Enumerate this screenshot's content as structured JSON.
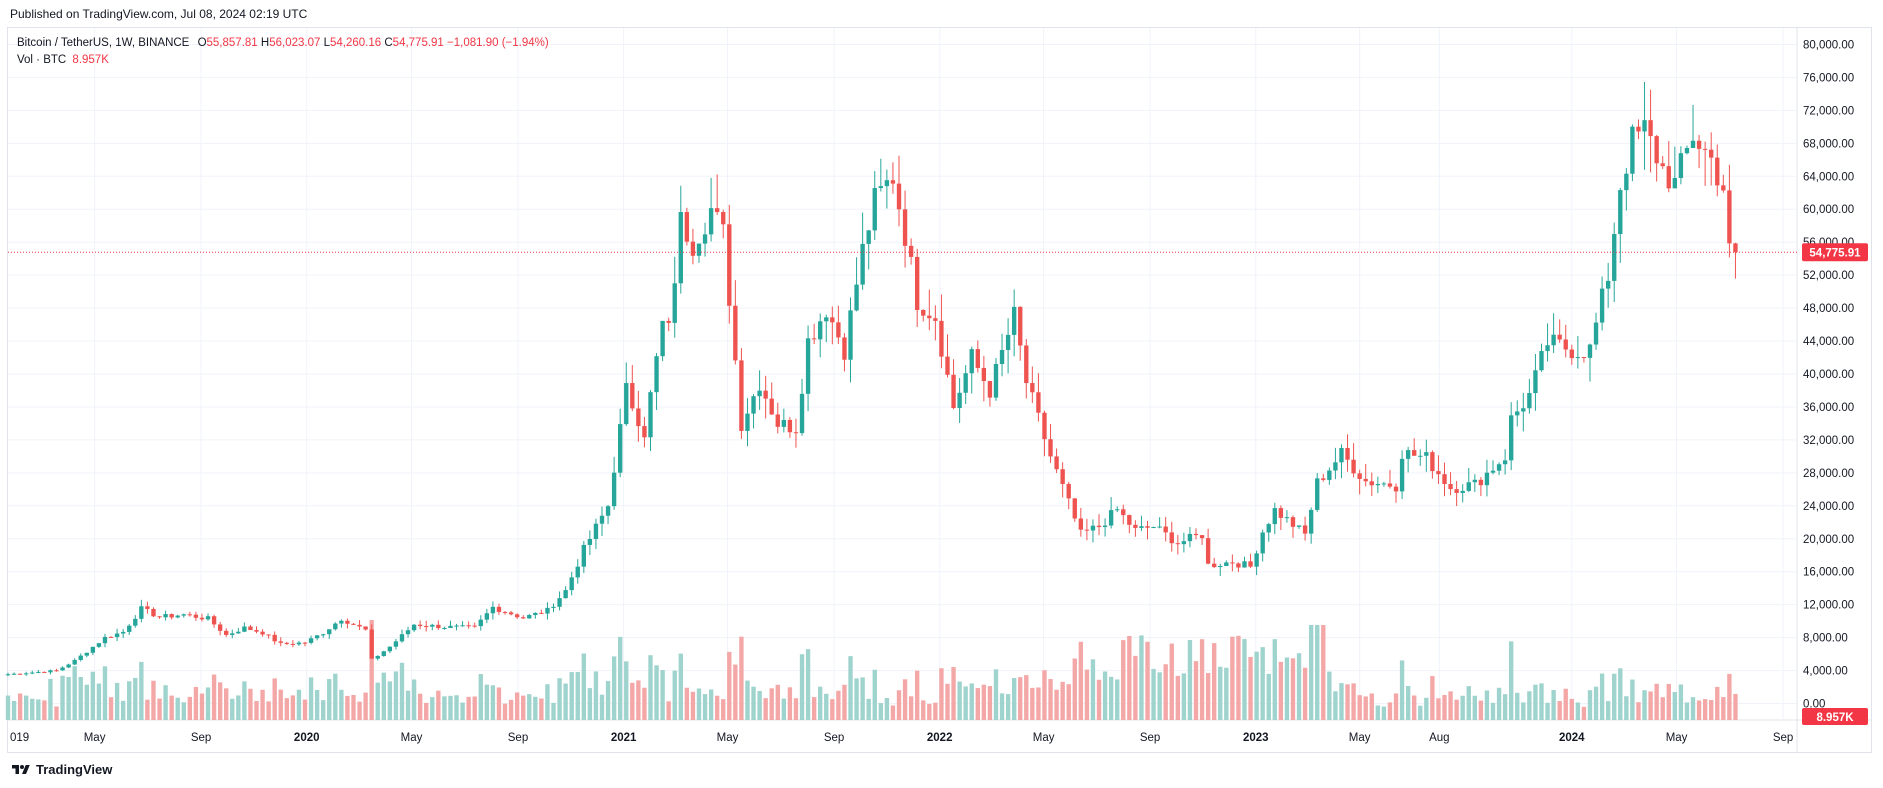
{
  "header": {
    "published": "Published on TradingView.com, Jul 08, 2024 02:19 UTC"
  },
  "legend": {
    "symbol": "Bitcoin / TetherUS, 1W, BINANCE",
    "o_label": "O",
    "o": "55,857.81",
    "h_label": "H",
    "h": "56,023.07",
    "l_label": "L",
    "l": "54,260.16",
    "c_label": "C",
    "c": "54,775.91",
    "change": "−1,081.90 (−1.94%)",
    "vol_label": "Vol · BTC",
    "vol": "8.957K"
  },
  "footer": {
    "brand": "TradingView",
    "logo_icon": "tradingview-logo-icon"
  },
  "colors": {
    "up": "#26a69a",
    "down": "#ef5350",
    "up_vol": "#9fd3cd",
    "down_vol": "#f4a7a7",
    "grid": "#f0f3fa",
    "last_price": "#f23645"
  },
  "chart_data": {
    "type": "candlestick",
    "title": "Bitcoin / TetherUS, 1W, BINANCE",
    "interval": "1W",
    "x_range": [
      "2019-01-21",
      "2024-09-09"
    ],
    "x_ticks": [
      {
        "date": "2019-01-01",
        "label": "019"
      },
      {
        "date": "2019-05-01",
        "label": "May"
      },
      {
        "date": "2019-09-01",
        "label": "Sep"
      },
      {
        "date": "2020-01-01",
        "label": "2020",
        "bold": true
      },
      {
        "date": "2020-05-01",
        "label": "May"
      },
      {
        "date": "2020-09-01",
        "label": "Sep"
      },
      {
        "date": "2021-01-01",
        "label": "2021",
        "bold": true
      },
      {
        "date": "2021-05-01",
        "label": "May"
      },
      {
        "date": "2021-09-01",
        "label": "Sep"
      },
      {
        "date": "2022-01-01",
        "label": "2022",
        "bold": true
      },
      {
        "date": "2022-05-01",
        "label": "May"
      },
      {
        "date": "2022-09-01",
        "label": "Sep"
      },
      {
        "date": "2023-01-01",
        "label": "2023",
        "bold": true
      },
      {
        "date": "2023-05-01",
        "label": "May"
      },
      {
        "date": "2023-08-01",
        "label": "Aug"
      },
      {
        "date": "2024-01-01",
        "label": "2024",
        "bold": true
      },
      {
        "date": "2024-05-01",
        "label": "May"
      },
      {
        "date": "2024-09-01",
        "label": "Sep"
      }
    ],
    "y_range": [
      -2000,
      82000
    ],
    "y_ticks": [
      "80,000.00",
      "76,000.00",
      "72,000.00",
      "68,000.00",
      "64,000.00",
      "60,000.00",
      "56,000.00",
      "52,000.00",
      "48,000.00",
      "44,000.00",
      "40,000.00",
      "36,000.00",
      "32,000.00",
      "28,000.00",
      "24,000.00",
      "20,000.00",
      "16,000.00",
      "12,000.00",
      "8,000.00",
      "4,000.00",
      "0.00"
    ],
    "y_tick_values": [
      80000,
      76000,
      72000,
      68000,
      64000,
      60000,
      56000,
      52000,
      48000,
      44000,
      40000,
      36000,
      32000,
      28000,
      24000,
      20000,
      16000,
      12000,
      8000,
      4000,
      0
    ],
    "last_price": 54775.91,
    "last_price_label": "54,775.91",
    "last_volume_label": "8.957K",
    "volume_max_btc": 110000,
    "closes": [
      {
        "date": "2019-01-21",
        "close": 3550
      },
      {
        "date": "2019-03-18",
        "close": 4000
      },
      {
        "date": "2019-04-08",
        "close": 5200
      },
      {
        "date": "2019-05-13",
        "close": 8000
      },
      {
        "date": "2019-06-03",
        "close": 8700
      },
      {
        "date": "2019-06-24",
        "close": 11500
      },
      {
        "date": "2019-07-15",
        "close": 10500
      },
      {
        "date": "2019-08-12",
        "close": 10800
      },
      {
        "date": "2019-09-09",
        "close": 10300
      },
      {
        "date": "2019-09-30",
        "close": 8300
      },
      {
        "date": "2019-10-21",
        "close": 9200
      },
      {
        "date": "2019-11-11",
        "close": 8600
      },
      {
        "date": "2019-12-02",
        "close": 7200
      },
      {
        "date": "2019-12-30",
        "close": 7400
      },
      {
        "date": "2020-01-20",
        "close": 8600
      },
      {
        "date": "2020-02-10",
        "close": 10300
      },
      {
        "date": "2020-03-09",
        "close": 8900
      },
      {
        "date": "2020-03-16",
        "close": 5300
      },
      {
        "date": "2020-04-06",
        "close": 6900
      },
      {
        "date": "2020-05-04",
        "close": 9600
      },
      {
        "date": "2020-06-08",
        "close": 9300
      },
      {
        "date": "2020-07-13",
        "close": 9200
      },
      {
        "date": "2020-08-03",
        "close": 11700
      },
      {
        "date": "2020-09-07",
        "close": 10400
      },
      {
        "date": "2020-10-05",
        "close": 11300
      },
      {
        "date": "2020-10-26",
        "close": 13700
      },
      {
        "date": "2020-11-16",
        "close": 18700
      },
      {
        "date": "2020-12-14",
        "close": 24000
      },
      {
        "date": "2021-01-04",
        "close": 38000
      },
      {
        "date": "2021-01-25",
        "close": 33000
      },
      {
        "date": "2021-02-15",
        "close": 46000
      },
      {
        "date": "2021-02-22",
        "close": 45200
      },
      {
        "date": "2021-03-08",
        "close": 58500
      },
      {
        "date": "2021-03-22",
        "close": 55900
      },
      {
        "date": "2021-04-12",
        "close": 60000
      },
      {
        "date": "2021-04-26",
        "close": 57000
      },
      {
        "date": "2021-05-17",
        "close": 34000
      },
      {
        "date": "2021-06-07",
        "close": 39000
      },
      {
        "date": "2021-06-28",
        "close": 34000
      },
      {
        "date": "2021-07-19",
        "close": 33500
      },
      {
        "date": "2021-08-02",
        "close": 44000
      },
      {
        "date": "2021-08-23",
        "close": 48000
      },
      {
        "date": "2021-09-13",
        "close": 43000
      },
      {
        "date": "2021-10-04",
        "close": 55000
      },
      {
        "date": "2021-10-18",
        "close": 61000
      },
      {
        "date": "2021-11-08",
        "close": 64000
      },
      {
        "date": "2021-11-22",
        "close": 57000
      },
      {
        "date": "2021-12-06",
        "close": 49000
      },
      {
        "date": "2021-12-27",
        "close": 47000
      },
      {
        "date": "2022-01-17",
        "close": 36000
      },
      {
        "date": "2022-02-07",
        "close": 42000
      },
      {
        "date": "2022-02-28",
        "close": 38000
      },
      {
        "date": "2022-03-28",
        "close": 47000
      },
      {
        "date": "2022-04-11",
        "close": 39000
      },
      {
        "date": "2022-05-09",
        "close": 30000
      },
      {
        "date": "2022-06-13",
        "close": 20500
      },
      {
        "date": "2022-07-04",
        "close": 21500
      },
      {
        "date": "2022-07-25",
        "close": 23500
      },
      {
        "date": "2022-08-15",
        "close": 21000
      },
      {
        "date": "2022-09-05",
        "close": 21500
      },
      {
        "date": "2022-10-03",
        "close": 19500
      },
      {
        "date": "2022-10-31",
        "close": 20500
      },
      {
        "date": "2022-11-07",
        "close": 16800
      },
      {
        "date": "2022-12-05",
        "close": 17200
      },
      {
        "date": "2022-12-26",
        "close": 16600
      },
      {
        "date": "2023-01-09",
        "close": 20900
      },
      {
        "date": "2023-01-23",
        "close": 23500
      },
      {
        "date": "2023-02-27",
        "close": 20500
      },
      {
        "date": "2023-03-13",
        "close": 26800
      },
      {
        "date": "2023-04-10",
        "close": 30300
      },
      {
        "date": "2023-05-08",
        "close": 27000
      },
      {
        "date": "2023-06-12",
        "close": 26500
      },
      {
        "date": "2023-06-19",
        "close": 30500
      },
      {
        "date": "2023-07-17",
        "close": 29800
      },
      {
        "date": "2023-08-14",
        "close": 26200
      },
      {
        "date": "2023-09-11",
        "close": 26600
      },
      {
        "date": "2023-10-16",
        "close": 30000
      },
      {
        "date": "2023-10-23",
        "close": 34500
      },
      {
        "date": "2023-11-13",
        "close": 37400
      },
      {
        "date": "2023-12-04",
        "close": 43800
      },
      {
        "date": "2024-01-08",
        "close": 42800
      },
      {
        "date": "2024-01-22",
        "close": 43000
      },
      {
        "date": "2024-02-12",
        "close": 52000
      },
      {
        "date": "2024-02-26",
        "close": 63000
      },
      {
        "date": "2024-03-11",
        "close": 68300
      },
      {
        "date": "2024-03-25",
        "close": 69600
      },
      {
        "date": "2024-04-15",
        "close": 64900
      },
      {
        "date": "2024-04-29",
        "close": 63000
      },
      {
        "date": "2024-05-20",
        "close": 69000
      },
      {
        "date": "2024-06-10",
        "close": 66000
      },
      {
        "date": "2024-06-24",
        "close": 62700
      },
      {
        "date": "2024-07-01",
        "close": 55857.81
      },
      {
        "date": "2024-07-08",
        "close": 54775.91
      }
    ]
  }
}
